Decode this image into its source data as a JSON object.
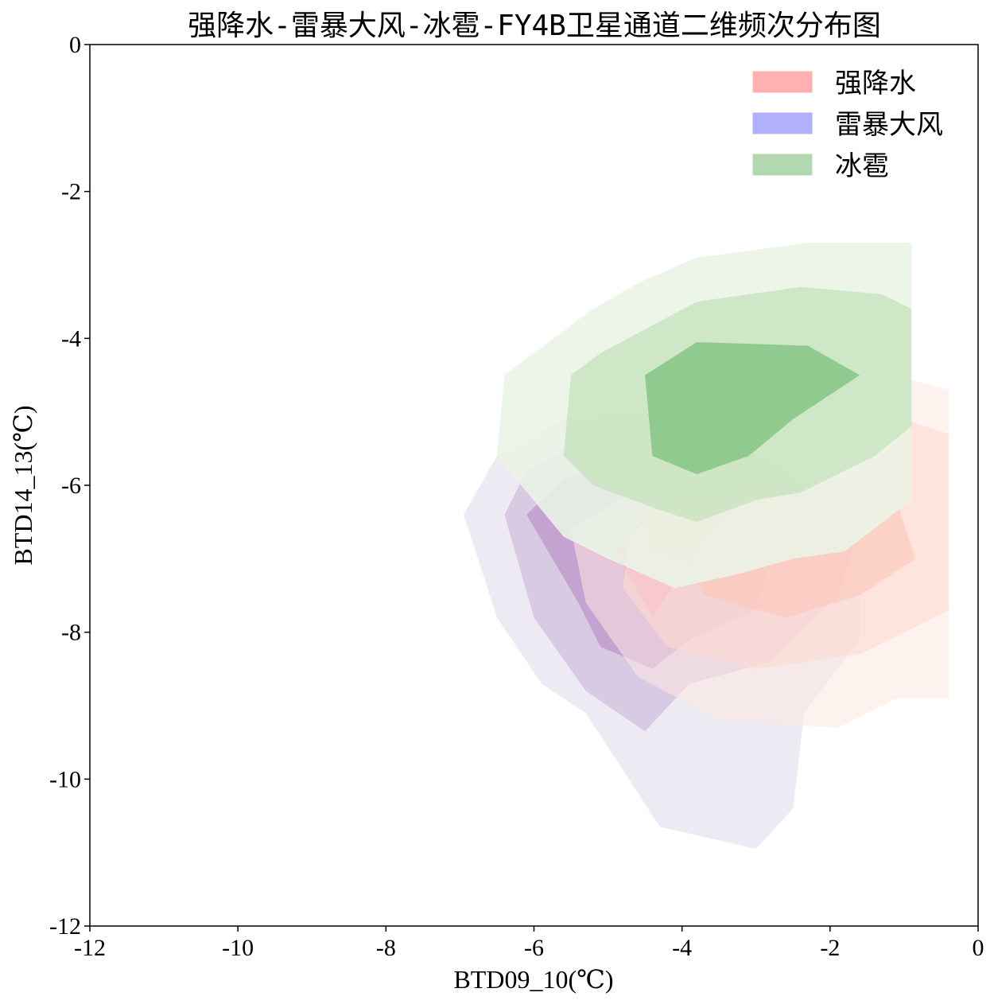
{
  "chart_data": {
    "type": "contour",
    "title": "强降水-雷暴大风-冰雹-FY4B卫星通道二维频次分布图",
    "xlabel": "BTD09_10(℃)",
    "ylabel": "BTD14_13(℃)",
    "xlim": [
      -12,
      0
    ],
    "ylim": [
      -12,
      0
    ],
    "xticks": [
      -12,
      -10,
      -8,
      -6,
      -4,
      -2,
      0
    ],
    "yticks": [
      0,
      -2,
      -4,
      -6,
      -8,
      -10,
      -12
    ],
    "xtick_labels": [
      "-12",
      "-10",
      "-8",
      "-6",
      "-4",
      "-2",
      "0"
    ],
    "ytick_labels": [
      "0",
      "-2",
      "-4",
      "-6",
      "-8",
      "-10",
      "-12"
    ],
    "legend_position": "top-right",
    "series": [
      {
        "name": "雷暴大风",
        "swatch_color": "#b0b0fb",
        "levels": [
          {
            "color": "#ddd5ea",
            "opacity": 0.5,
            "points": [
              [
                -6.95,
                -6.4
              ],
              [
                -6.5,
                -5.6
              ],
              [
                -5.6,
                -5.1
              ],
              [
                -4.1,
                -4.9
              ],
              [
                -2.6,
                -5.3
              ],
              [
                -1.6,
                -6.5
              ],
              [
                -1.6,
                -8.1
              ],
              [
                -2.35,
                -9.1
              ],
              [
                -2.5,
                -10.4
              ],
              [
                -3.0,
                -10.95
              ],
              [
                -4.3,
                -10.65
              ],
              [
                -5.3,
                -9.1
              ],
              [
                -5.9,
                -8.7
              ],
              [
                -6.5,
                -7.8
              ]
            ]
          },
          {
            "color": "#c9aed6",
            "opacity": 0.55,
            "points": [
              [
                -6.4,
                -6.4
              ],
              [
                -6.1,
                -5.8
              ],
              [
                -5.2,
                -5.3
              ],
              [
                -4.0,
                -5.2
              ],
              [
                -2.7,
                -5.7
              ],
              [
                -1.6,
                -6.6
              ],
              [
                -1.9,
                -7.5
              ],
              [
                -2.8,
                -8.4
              ],
              [
                -3.9,
                -8.7
              ],
              [
                -4.5,
                -9.35
              ],
              [
                -5.3,
                -8.8
              ],
              [
                -6.0,
                -7.8
              ]
            ]
          },
          {
            "color": "#b888c3",
            "opacity": 0.6,
            "points": [
              [
                -6.1,
                -6.4
              ],
              [
                -5.6,
                -5.9
              ],
              [
                -4.6,
                -5.7
              ],
              [
                -3.4,
                -6.0
              ],
              [
                -2.7,
                -6.8
              ],
              [
                -3.0,
                -7.7
              ],
              [
                -3.9,
                -8.1
              ],
              [
                -4.4,
                -8.5
              ],
              [
                -5.1,
                -8.2
              ],
              [
                -5.4,
                -7.6
              ]
            ]
          },
          {
            "color": "#e35aa5",
            "opacity": 0.75,
            "points": [
              [
                -4.9,
                -6.9
              ],
              [
                -4.3,
                -6.2
              ],
              [
                -3.8,
                -6.9
              ],
              [
                -4.4,
                -7.8
              ]
            ]
          }
        ]
      },
      {
        "name": "强降水",
        "swatch_color": "#ffb1b1",
        "levels": [
          {
            "color": "#fde8e2",
            "opacity": 0.55,
            "points": [
              [
                -4.2,
                -5.8
              ],
              [
                -2.5,
                -4.8
              ],
              [
                -1.5,
                -4.4
              ],
              [
                -0.4,
                -4.7
              ],
              [
                -0.4,
                -8.9
              ],
              [
                -1.1,
                -8.9
              ],
              [
                -1.9,
                -9.3
              ],
              [
                -3.5,
                -9.2
              ],
              [
                -4.6,
                -8.6
              ],
              [
                -5.3,
                -7.6
              ],
              [
                -5.5,
                -6.6
              ]
            ]
          },
          {
            "color": "#fddbd0",
            "opacity": 0.6,
            "points": [
              [
                -4.0,
                -6.0
              ],
              [
                -2.4,
                -5.2
              ],
              [
                -1.3,
                -5.0
              ],
              [
                -0.4,
                -5.3
              ],
              [
                -0.4,
                -7.7
              ],
              [
                -1.6,
                -8.3
              ],
              [
                -3.0,
                -8.5
              ],
              [
                -4.2,
                -8.2
              ],
              [
                -4.8,
                -7.4
              ],
              [
                -4.7,
                -6.7
              ]
            ]
          },
          {
            "color": "#fcc7b8",
            "opacity": 0.6,
            "points": [
              [
                -4.3,
                -6.4
              ],
              [
                -3.2,
                -6.0
              ],
              [
                -1.2,
                -5.9
              ],
              [
                -0.85,
                -7.0
              ],
              [
                -1.6,
                -7.5
              ],
              [
                -2.6,
                -7.8
              ],
              [
                -3.7,
                -7.5
              ]
            ]
          },
          {
            "color": "#fbb0a0",
            "opacity": 0.55,
            "points": [
              [
                -4.5,
                -6.4
              ],
              [
                -3.9,
                -6.0
              ],
              [
                -3.4,
                -6.4
              ],
              [
                -3.9,
                -7.0
              ],
              [
                -4.4,
                -6.9
              ]
            ]
          }
        ]
      },
      {
        "name": "冰雹",
        "swatch_color": "#b2d8b2",
        "levels": [
          {
            "color": "#eaf4e6",
            "opacity": 0.88,
            "points": [
              [
                -6.4,
                -4.5
              ],
              [
                -5.2,
                -3.6
              ],
              [
                -4.6,
                -3.25
              ],
              [
                -3.8,
                -2.9
              ],
              [
                -2.3,
                -2.7
              ],
              [
                -0.9,
                -2.7
              ],
              [
                -0.9,
                -6.2
              ],
              [
                -1.8,
                -6.9
              ],
              [
                -2.5,
                -7.0
              ],
              [
                -3.2,
                -7.2
              ],
              [
                -4.1,
                -7.4
              ],
              [
                -5.0,
                -7.0
              ],
              [
                -5.6,
                -6.7
              ],
              [
                -6.5,
                -5.6
              ]
            ]
          },
          {
            "color": "#c3e3bb",
            "opacity": 0.75,
            "points": [
              [
                -5.5,
                -4.5
              ],
              [
                -5.1,
                -4.2
              ],
              [
                -3.8,
                -3.5
              ],
              [
                -2.4,
                -3.3
              ],
              [
                -1.3,
                -3.4
              ],
              [
                -0.9,
                -3.6
              ],
              [
                -0.9,
                -5.2
              ],
              [
                -1.4,
                -5.6
              ],
              [
                -2.4,
                -6.1
              ],
              [
                -3.0,
                -6.2
              ],
              [
                -3.8,
                -6.5
              ],
              [
                -4.4,
                -6.3
              ],
              [
                -5.2,
                -6.0
              ],
              [
                -5.6,
                -5.6
              ]
            ]
          },
          {
            "color": "#7fc27f",
            "opacity": 0.78,
            "points": [
              [
                -4.5,
                -4.5
              ],
              [
                -3.8,
                -4.05
              ],
              [
                -2.3,
                -4.1
              ],
              [
                -1.6,
                -4.5
              ],
              [
                -2.5,
                -5.1
              ],
              [
                -3.1,
                -5.6
              ],
              [
                -3.8,
                -5.85
              ],
              [
                -4.4,
                -5.6
              ]
            ]
          }
        ]
      }
    ]
  }
}
